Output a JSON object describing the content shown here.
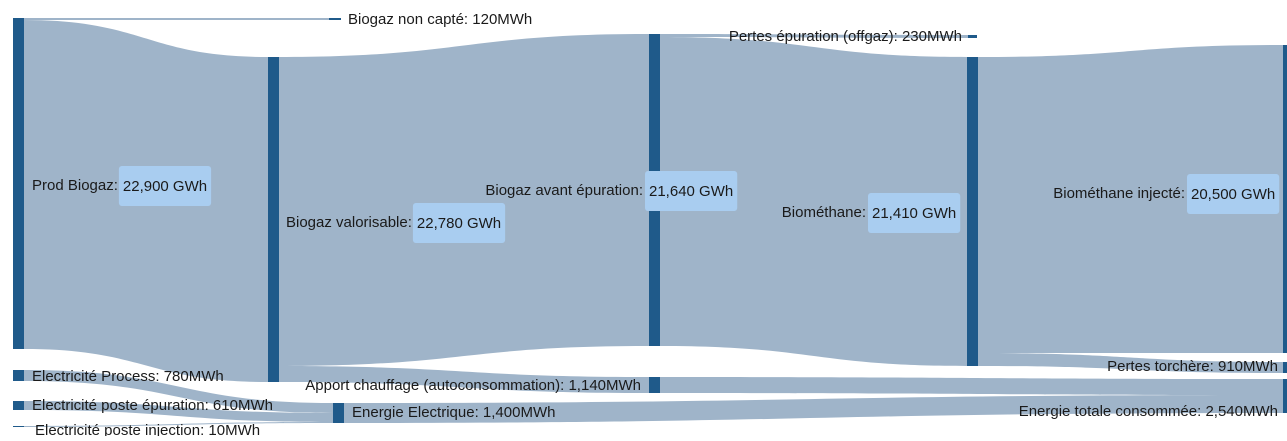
{
  "chart_data": {
    "type": "sankey",
    "nodes": [
      {
        "id": "prod",
        "label": "Prod Biogaz:",
        "value_label": "22,900 GWh",
        "value": 22900
      },
      {
        "id": "noncapte",
        "label": "Biogaz non capté: 120MWh",
        "value": 120
      },
      {
        "id": "valorisable",
        "label": "Biogaz valorisable:",
        "value_label": "22,780 GWh",
        "value": 22780
      },
      {
        "id": "avant",
        "label": "Biogaz avant épuration:",
        "value_label": "21,640 GWh",
        "value": 21640
      },
      {
        "id": "pertes_epu",
        "label": "Pertes épuration (offgaz): 230MWh",
        "value": 230
      },
      {
        "id": "biomethane",
        "label": "Biométhane:",
        "value_label": "21,410 GWh",
        "value": 21410
      },
      {
        "id": "injecte",
        "label": "Biométhane injecté:",
        "value_label": "20,500 GWh",
        "value": 20500
      },
      {
        "id": "torchere",
        "label": "Pertes torchère: 910MWh",
        "value": 910
      },
      {
        "id": "chauffage",
        "label": "Apport chauffage (autoconsommation): 1,140MWh",
        "value": 1140
      },
      {
        "id": "elec_process",
        "label": "Electricité Process: 780MWh",
        "value": 780
      },
      {
        "id": "elec_epu",
        "label": "Electricité poste épuration: 610MWh",
        "value": 610
      },
      {
        "id": "elec_inj",
        "label": "Electricité poste injection: 10MWh",
        "value": 10
      },
      {
        "id": "energie_elec",
        "label": "Energie Electrique: 1,400MWh",
        "value": 1400
      },
      {
        "id": "energie_totale",
        "label": "Energie totale consommée: 2,540MWh",
        "value": 2540
      }
    ],
    "links": [
      {
        "source": "prod",
        "target": "noncapte",
        "value": 120
      },
      {
        "source": "prod",
        "target": "valorisable",
        "value": 22780
      },
      {
        "source": "valorisable",
        "target": "avant",
        "value": 21640
      },
      {
        "source": "valorisable",
        "target": "chauffage",
        "value": 1140
      },
      {
        "source": "avant",
        "target": "pertes_epu",
        "value": 230
      },
      {
        "source": "avant",
        "target": "biomethane",
        "value": 21410
      },
      {
        "source": "biomethane",
        "target": "injecte",
        "value": 20500
      },
      {
        "source": "biomethane",
        "target": "torchere",
        "value": 910
      },
      {
        "source": "elec_process",
        "target": "energie_elec",
        "value": 780
      },
      {
        "source": "elec_epu",
        "target": "energie_elec",
        "value": 610
      },
      {
        "source": "elec_inj",
        "target": "energie_elec",
        "value": 10
      },
      {
        "source": "chauffage",
        "target": "energie_totale",
        "value": 1140
      },
      {
        "source": "energie_elec",
        "target": "energie_totale",
        "value": 1400
      }
    ],
    "colors": {
      "node": "#1f5a8a",
      "link": "#9fb4c9",
      "badge": "#a9cdf0"
    }
  }
}
